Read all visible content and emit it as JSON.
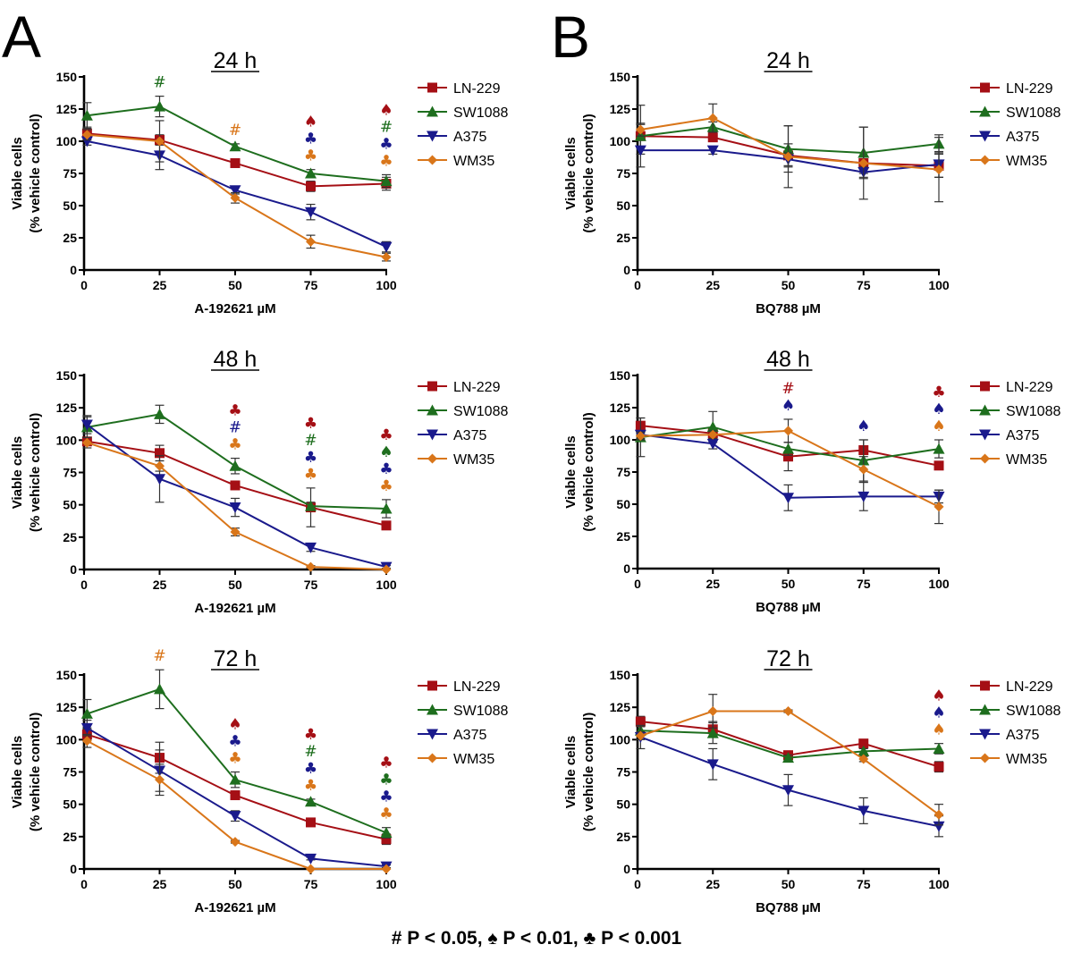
{
  "figure": {
    "panel_letters": [
      "A",
      "B"
    ],
    "footnote": "# P < 0.05, ♠ P < 0.01, ♣ P < 0.001",
    "significance_legend": [
      {
        "symbol": "#",
        "meaning": "P < 0.05"
      },
      {
        "symbol": "♠",
        "meaning": "P < 0.01"
      },
      {
        "symbol": "♣",
        "meaning": "P < 0.001"
      }
    ]
  },
  "series_styles": {
    "LN-229": {
      "color": "#a50f15",
      "marker": "square"
    },
    "SW1088": {
      "color": "#1e6e1e",
      "marker": "triangle-up"
    },
    "A375": {
      "color": "#1a1a8c",
      "marker": "triangle-down"
    },
    "WM35": {
      "color": "#d9761a",
      "marker": "diamond"
    }
  },
  "chart_data": [
    {
      "id": "A-24h",
      "panel": "A",
      "type": "line",
      "title": "24 h",
      "xlabel": "A-192621 µM",
      "ylabel": "Viable cells (% vehicle control)",
      "x": [
        0,
        25,
        50,
        75,
        100
      ],
      "xticks": [
        "0",
        "25",
        "50",
        "75",
        "100"
      ],
      "yticks": [
        "0",
        "25",
        "50",
        "75",
        "100",
        "125",
        "150"
      ],
      "ylim": [
        0,
        150
      ],
      "xlim": [
        0,
        100
      ],
      "legend": "right",
      "series": [
        {
          "name": "LN-229",
          "values": [
            106,
            101,
            83,
            65,
            67
          ],
          "err": [
            5,
            4,
            2,
            4,
            5
          ]
        },
        {
          "name": "SW1088",
          "values": [
            120,
            127,
            96,
            75,
            69
          ],
          "err": [
            10,
            8,
            2,
            3,
            5
          ]
        },
        {
          "name": "A375",
          "values": [
            100,
            89,
            62,
            45,
            18
          ],
          "err": [
            3,
            11,
            3,
            6,
            4
          ]
        },
        {
          "name": "WM35",
          "values": [
            105,
            100,
            56,
            22,
            10
          ],
          "err": [
            4,
            16,
            4,
            5,
            3
          ]
        }
      ],
      "annotations": [
        {
          "x": 25,
          "symbols": [
            {
              "s": "#",
              "series": "SW1088"
            }
          ]
        },
        {
          "x": 50,
          "symbols": [
            {
              "s": "#",
              "series": "WM35"
            }
          ]
        },
        {
          "x": 75,
          "symbols": [
            {
              "s": "♠",
              "series": "LN-229"
            },
            {
              "s": "♣",
              "series": "A375"
            },
            {
              "s": "♣",
              "series": "WM35"
            }
          ]
        },
        {
          "x": 100,
          "symbols": [
            {
              "s": "♠",
              "series": "LN-229"
            },
            {
              "s": "#",
              "series": "SW1088"
            },
            {
              "s": "♣",
              "series": "A375"
            },
            {
              "s": "♣",
              "series": "WM35"
            }
          ]
        }
      ]
    },
    {
      "id": "A-48h",
      "panel": "A",
      "type": "line",
      "title": "48 h",
      "xlabel": "A-192621 µM",
      "ylabel": "Viable cells (% vehicle control)",
      "x": [
        0,
        25,
        50,
        75,
        100
      ],
      "xticks": [
        "0",
        "25",
        "50",
        "75",
        "100"
      ],
      "yticks": [
        "0",
        "25",
        "50",
        "75",
        "100",
        "125",
        "150"
      ],
      "ylim": [
        0,
        150
      ],
      "xlim": [
        0,
        100
      ],
      "legend": "right",
      "series": [
        {
          "name": "LN-229",
          "values": [
            99,
            90,
            65,
            48,
            34
          ],
          "err": [
            3,
            6,
            2,
            15,
            2
          ]
        },
        {
          "name": "SW1088",
          "values": [
            110,
            120,
            80,
            49,
            47
          ],
          "err": [
            8,
            7,
            6,
            3,
            7
          ]
        },
        {
          "name": "A375",
          "values": [
            112,
            70,
            48,
            17,
            2
          ],
          "err": [
            7,
            18,
            7,
            3,
            1
          ]
        },
        {
          "name": "WM35",
          "values": [
            98,
            80,
            29,
            2,
            0
          ],
          "err": [
            4,
            4,
            3,
            1,
            0
          ]
        }
      ],
      "annotations": [
        {
          "x": 50,
          "symbols": [
            {
              "s": "♣",
              "series": "LN-229"
            },
            {
              "s": "#",
              "series": "A375"
            },
            {
              "s": "♣",
              "series": "WM35"
            }
          ]
        },
        {
          "x": 75,
          "symbols": [
            {
              "s": "♣",
              "series": "LN-229"
            },
            {
              "s": "#",
              "series": "SW1088"
            },
            {
              "s": "♣",
              "series": "A375"
            },
            {
              "s": "♣",
              "series": "WM35"
            }
          ]
        },
        {
          "x": 100,
          "symbols": [
            {
              "s": "♣",
              "series": "LN-229"
            },
            {
              "s": "♠",
              "series": "SW1088"
            },
            {
              "s": "♣",
              "series": "A375"
            },
            {
              "s": "♣",
              "series": "WM35"
            }
          ]
        }
      ]
    },
    {
      "id": "A-72h",
      "panel": "A",
      "type": "line",
      "title": "72 h",
      "xlabel": "A-192621 µM",
      "ylabel": "Viable cells (% vehicle control)",
      "x": [
        0,
        25,
        50,
        75,
        100
      ],
      "xticks": [
        "0",
        "25",
        "50",
        "75",
        "100"
      ],
      "yticks": [
        "0",
        "25",
        "50",
        "75",
        "100",
        "125",
        "150"
      ],
      "ylim": [
        0,
        150
      ],
      "xlim": [
        0,
        100
      ],
      "legend": "right",
      "series": [
        {
          "name": "LN-229",
          "values": [
            104,
            86,
            57,
            36,
            23
          ],
          "err": [
            4,
            12,
            2,
            3,
            4
          ]
        },
        {
          "name": "SW1088",
          "values": [
            120,
            139,
            69,
            52,
            28
          ],
          "err": [
            11,
            15,
            6,
            2,
            4
          ]
        },
        {
          "name": "A375",
          "values": [
            109,
            76,
            41,
            8,
            2
          ],
          "err": [
            6,
            16,
            4,
            1,
            1
          ]
        },
        {
          "name": "WM35",
          "values": [
            99,
            69,
            21,
            0,
            0
          ],
          "err": [
            5,
            12,
            1,
            0,
            0
          ]
        }
      ],
      "annotations": [
        {
          "x": 25,
          "symbols": [
            {
              "s": "#",
              "series": "WM35"
            }
          ]
        },
        {
          "x": 50,
          "symbols": [
            {
              "s": "♠",
              "series": "LN-229"
            },
            {
              "s": "♣",
              "series": "A375"
            },
            {
              "s": "♣",
              "series": "WM35"
            }
          ]
        },
        {
          "x": 75,
          "symbols": [
            {
              "s": "♣",
              "series": "LN-229"
            },
            {
              "s": "#",
              "series": "SW1088"
            },
            {
              "s": "♣",
              "series": "A375"
            },
            {
              "s": "♣",
              "series": "WM35"
            }
          ]
        },
        {
          "x": 100,
          "symbols": [
            {
              "s": "♣",
              "series": "LN-229"
            },
            {
              "s": "♣",
              "series": "SW1088"
            },
            {
              "s": "♣",
              "series": "A375"
            },
            {
              "s": "♣",
              "series": "WM35"
            }
          ]
        }
      ]
    },
    {
      "id": "B-24h",
      "panel": "B",
      "type": "line",
      "title": "24 h",
      "xlabel": "BQ788 µM",
      "ylabel": "Viable cells (% vehicle control)",
      "x": [
        0,
        25,
        50,
        75,
        100
      ],
      "xticks": [
        "0",
        "25",
        "50",
        "75",
        "100"
      ],
      "yticks": [
        "0",
        "25",
        "50",
        "75",
        "100",
        "125",
        "150"
      ],
      "ylim": [
        0,
        150
      ],
      "xlim": [
        0,
        100
      ],
      "legend": "right",
      "series": [
        {
          "name": "LN-229",
          "values": [
            104,
            103,
            89,
            83,
            81
          ],
          "err": [
            9,
            3,
            9,
            8,
            9
          ]
        },
        {
          "name": "SW1088",
          "values": [
            104,
            111,
            94,
            91,
            98
          ],
          "err": [
            24,
            4,
            18,
            20,
            7
          ]
        },
        {
          "name": "A375",
          "values": [
            93,
            93,
            86,
            76,
            82
          ],
          "err": [
            3,
            3,
            5,
            4,
            10
          ]
        },
        {
          "name": "WM35",
          "values": [
            109,
            118,
            88,
            83,
            78
          ],
          "err": [
            5,
            11,
            24,
            28,
            25
          ]
        }
      ],
      "annotations": []
    },
    {
      "id": "B-48h",
      "panel": "B",
      "type": "line",
      "title": "48 h",
      "xlabel": "BQ788 µM",
      "ylabel": "Viable cells (% vehicle control)",
      "x": [
        0,
        25,
        50,
        75,
        100
      ],
      "xticks": [
        "0",
        "25",
        "50",
        "75",
        "100"
      ],
      "yticks": [
        "0",
        "25",
        "50",
        "75",
        "100",
        "125",
        "150"
      ],
      "ylim": [
        0,
        150
      ],
      "xlim": [
        0,
        100
      ],
      "legend": "right",
      "series": [
        {
          "name": "LN-229",
          "values": [
            111,
            105,
            87,
            92,
            80
          ],
          "err": [
            6,
            4,
            11,
            8,
            3
          ]
        },
        {
          "name": "SW1088",
          "values": [
            102,
            110,
            93,
            84,
            93
          ],
          "err": [
            15,
            12,
            5,
            16,
            7
          ]
        },
        {
          "name": "A375",
          "values": [
            104,
            97,
            55,
            56,
            56
          ],
          "err": [
            3,
            4,
            10,
            11,
            5
          ]
        },
        {
          "name": "WM35",
          "values": [
            103,
            104,
            107,
            77,
            48
          ],
          "err": [
            3,
            3,
            9,
            10,
            13
          ]
        }
      ],
      "annotations": [
        {
          "x": 50,
          "symbols": [
            {
              "s": "#",
              "series": "LN-229"
            },
            {
              "s": "♠",
              "series": "A375"
            }
          ]
        },
        {
          "x": 75,
          "symbols": [
            {
              "s": "♠",
              "series": "A375"
            }
          ]
        },
        {
          "x": 100,
          "symbols": [
            {
              "s": "♣",
              "series": "LN-229"
            },
            {
              "s": "♠",
              "series": "A375"
            },
            {
              "s": "♠",
              "series": "WM35"
            }
          ]
        }
      ]
    },
    {
      "id": "B-72h",
      "panel": "B",
      "type": "line",
      "title": "72 h",
      "xlabel": "BQ788 µM",
      "ylabel": "Viable cells (% vehicle control)",
      "x": [
        0,
        25,
        50,
        75,
        100
      ],
      "xticks": [
        "0",
        "25",
        "50",
        "75",
        "100"
      ],
      "yticks": [
        "0",
        "25",
        "50",
        "75",
        "100",
        "125",
        "150"
      ],
      "ylim": [
        0,
        150
      ],
      "xlim": [
        0,
        100
      ],
      "legend": "right",
      "series": [
        {
          "name": "LN-229",
          "values": [
            114,
            108,
            88,
            97,
            79
          ],
          "err": [
            4,
            6,
            2,
            3,
            4
          ]
        },
        {
          "name": "SW1088",
          "values": [
            107,
            105,
            86,
            91,
            93
          ],
          "err": [
            3,
            8,
            2,
            2,
            4
          ]
        },
        {
          "name": "A375",
          "values": [
            102,
            81,
            61,
            45,
            33
          ],
          "err": [
            9,
            12,
            12,
            10,
            8
          ]
        },
        {
          "name": "WM35",
          "values": [
            103,
            122,
            122,
            85,
            42
          ],
          "err": [
            3,
            13,
            1,
            2,
            8
          ]
        }
      ],
      "annotations": [
        {
          "x": 100,
          "symbols": [
            {
              "s": "♠",
              "series": "LN-229"
            },
            {
              "s": "♠",
              "series": "A375"
            },
            {
              "s": "♠",
              "series": "WM35"
            }
          ]
        }
      ]
    }
  ]
}
